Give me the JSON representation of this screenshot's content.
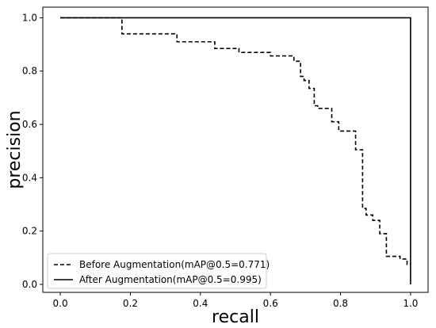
{
  "chart_data": {
    "type": "line",
    "xlabel": "recall",
    "ylabel": "precision",
    "xlim": [
      -0.05,
      1.05
    ],
    "ylim": [
      -0.03,
      1.04
    ],
    "xticks": [
      "0.0",
      "0.2",
      "0.4",
      "0.6",
      "0.8",
      "1.0"
    ],
    "yticks": [
      "0.0",
      "0.2",
      "0.4",
      "0.6",
      "0.8",
      "1.0"
    ],
    "grid": false,
    "legend_position": "bottom-left",
    "series": [
      {
        "name": "Before Augmentation(mAP@0.5=0.771)",
        "style": "dashed",
        "color": "#000000",
        "x": [
          0.0,
          0.176,
          0.176,
          0.333,
          0.333,
          0.441,
          0.441,
          0.51,
          0.51,
          0.6,
          0.6,
          0.667,
          0.667,
          0.686,
          0.686,
          0.696,
          0.696,
          0.71,
          0.71,
          0.725,
          0.725,
          0.735,
          0.735,
          0.775,
          0.775,
          0.795,
          0.795,
          0.843,
          0.843,
          0.863,
          0.863,
          0.873,
          0.873,
          0.892,
          0.892,
          0.912,
          0.912,
          0.931,
          0.931,
          0.97,
          0.97,
          0.99,
          0.99,
          1.0
        ],
        "y": [
          1.0,
          1.0,
          0.94,
          0.94,
          0.91,
          0.91,
          0.885,
          0.885,
          0.87,
          0.87,
          0.857,
          0.857,
          0.837,
          0.837,
          0.78,
          0.78,
          0.765,
          0.765,
          0.735,
          0.735,
          0.67,
          0.67,
          0.66,
          0.66,
          0.61,
          0.61,
          0.575,
          0.575,
          0.505,
          0.505,
          0.285,
          0.285,
          0.26,
          0.26,
          0.24,
          0.24,
          0.19,
          0.19,
          0.105,
          0.105,
          0.095,
          0.095,
          0.075,
          0.075
        ]
      },
      {
        "name": "After Augmentation(mAP@0.5=0.995)",
        "style": "solid",
        "color": "#000000",
        "x": [
          0.0,
          1.0,
          1.0
        ],
        "y": [
          1.0,
          1.0,
          0.0
        ]
      }
    ]
  }
}
